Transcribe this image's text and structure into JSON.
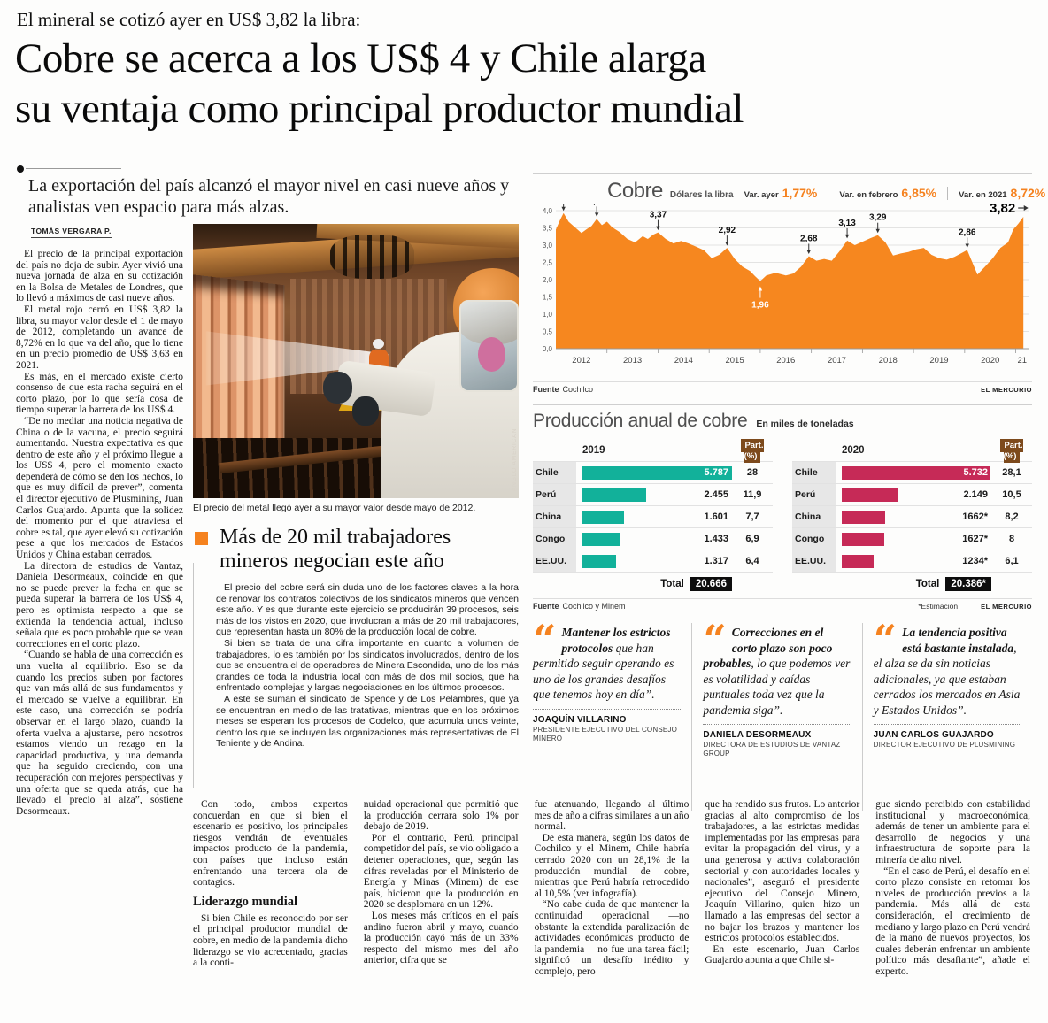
{
  "page": {
    "kicker": "El mineral se cotizó ayer en US$ 3,82 la libra:",
    "headline_line1": "Cobre se acerca a los US$ 4 y Chile alarga",
    "headline_line2": "su ventaja como principal productor mundial",
    "subhead": "La exportación del país alcanzó el mayor nivel en casi nueve años y analistas ven espacio para más alzas.",
    "byline": "TOMÁS VERGARA P."
  },
  "article": {
    "col1": [
      "El precio de la principal exportación del país no deja de subir. Ayer vivió una nueva jornada de alza en su cotización en la Bolsa de Metales de Londres, que lo llevó a máximos de casi nueve años.",
      "El metal rojo cerró en US$ 3,82 la libra, su mayor valor desde el 1 de mayo de 2012, completando un avance de 8,72% en lo que va del año, que lo tiene en un precio promedio de US$ 3,63 en 2021.",
      "Es más, en el mercado existe cierto consenso de que esta racha seguirá en el corto plazo, por lo que sería cosa de tiempo superar la barrera de los US$ 4.",
      "“De no mediar una noticia negativa de China o de la vacuna, el precio seguirá aumentando. Nuestra expectativa es que dentro de este año y el próximo llegue a los US$ 4, pero el momento exacto dependerá de cómo se den los hechos, lo que es muy difícil de prever”, comenta el director ejecutivo de Plusmining, Juan Carlos Guajardo. Apunta que la solidez del momento por el que atraviesa el cobre es tal, que ayer elevó su cotización pese a que los mercados de Estados Unidos y China estaban cerrados.",
      "La directora de estudios de Vantaz, Daniela Desormeaux, coincide en que no se puede prever la fecha en que se pueda superar la barrera de los US$ 4, pero es optimista respecto a que se extienda la tendencia actual, incluso señala que es poco probable que se vean correcciones en el corto plazo.",
      "“Cuando se habla de una corrección es una vuelta al equilibrio. Eso se da cuando los precios suben por factores que van más allá de sus fundamentos y el mercado se vuelve a equilibrar. En este caso, una corrección se podría observar en el largo plazo, cuando la oferta vuelva a ajustarse, pero nosotros estamos viendo un rezago en la capacidad productiva, y una demanda que ha seguido creciendo, con una recuperación con mejores perspectivas y una oferta que se queda atrás, que ha llevado el precio al alza”, sostiene Desormeaux."
    ],
    "col2_before": [
      "Con todo, ambos expertos concuerdan en que si bien el escenario es positivo, los principales riesgos vendrán de eventuales impactos producto de la pandemia, con países que incluso están enfrentando una tercera ola de contagios."
    ],
    "col2_subhead": "Liderazgo mundial",
    "col2_after": [
      "Si bien Chile es reconocido por ser el principal productor mundial de cobre, en medio de la pandemia dicho liderazgo se vio acrecentado, gracias a la conti-"
    ],
    "col3": [
      "nuidad operacional que permitió que la producción cerrara solo 1% por debajo de 2019.",
      "Por el contrario, Perú, principal competidor del país, se vio obligado a detener operaciones, que, según las cifras reveladas por el Ministerio de Energía y Minas (Minem) de ese país, hicieron que la producción en 2020 se desplomara en un 12%.",
      "Los meses más críticos en el país andino fueron abril y mayo, cuando la producción cayó más de un 33% respecto del mismo mes del año anterior, cifra que se"
    ],
    "col4": [
      "fue atenuando, llegando al último mes de año a cifras similares a un año normal.",
      "De esta manera, según los datos de Cochilco y el Minem, Chile habría cerrado 2020 con un 28,1% de la producción mundial de cobre, mientras que Perú habría retrocedido al 10,5% (ver infografía).",
      "“No cabe duda de que mantener la continuidad operacional —no obstante la extendida paralización de actividades económicas producto de la pandemia— no fue una tarea fácil; significó un desafío inédito y complejo, pero"
    ],
    "col5": [
      "que ha rendido sus frutos. Lo anterior gracias al alto compromiso de los trabajadores, a las estrictas medidas implementadas por las empresas para evitar la propagación del virus, y a una generosa y activa colaboración sectorial y con autoridades locales y nacionales”, aseguró el presidente ejecutivo del Consejo Minero, Joaquín Villarino, quien hizo un llamado a las empresas del sector a no bajar los brazos y mantener los estrictos protocolos establecidos.",
      "En este escenario, Juan Carlos Guajardo apunta a que Chile si-"
    ],
    "col6": [
      "gue siendo percibido con estabilidad institucional y macroeconómica, además de tener un ambiente para el desarrollo de negocios y una infraestructura de soporte para la minería de alto nivel.",
      "“En el caso de Perú, el desafío en el corto plazo consiste en retomar los niveles de producción previos a la pandemia. Más allá de esta consideración, el crecimiento de mediano y largo plazo en Perú vendrá de la mano de nuevos proyectos, los cuales deberán enfrentar un ambiente político más desafiante”, añade el experto."
    ]
  },
  "photo": {
    "caption": "El precio del metal llegó ayer a su mayor valor desde mayo de 2012.",
    "credit": "ANGLO AMERICAN"
  },
  "secondary": {
    "headline": "Más de 20 mil trabajadores mineros negocian este año",
    "paragraphs": [
      "El precio del cobre será sin duda uno de los factores claves a la hora de renovar los contratos colectivos de los sindicatos mineros que vencen este año. Y es que durante este ejercicio se producirán 39 procesos, seis más de los vistos en 2020, que involucran a más de 20 mil trabajadores, que representan hasta un 80% de la producción local de cobre.",
      "Si bien se trata de una cifra importante en cuanto a volumen de trabajadores, lo es también por los sindicatos involucrados, dentro de los que se encuentra el de operadores de Minera Escondida, uno de los más grandes de toda la industria local con más de dos mil socios, que ha enfrentado complejas y largas negociaciones en los últimos procesos.",
      "A este se suman el sindicato de Spence y de Los Pelambres, que ya se encuentran en medio de las tratativas, mientras que en los próximos meses se esperan los procesos de Codelco, que acumula unos veinte, dentro los que se incluyen las organizaciones más representativas de El Teniente y de Andina."
    ]
  },
  "quotes": [
    {
      "lead": "Mantener los estrictos protocolos",
      "rest": " que han permitido seguir operando es uno de los grandes desafíos que tenemos hoy en día”.",
      "name": "JOAQUÍN VILLARINO",
      "title": "PRESIDENTE EJECUTIVO DEL CONSEJO MINERO"
    },
    {
      "lead": "Correcciones en el corto plazo son poco probables",
      "rest": ", lo que podemos ver es volatilidad y caídas puntuales toda vez que la pandemia siga”.",
      "name": "DANIELA DESORMEAUX",
      "title": "DIRECTORA DE ESTUDIOS DE VANTAZ GROUP"
    },
    {
      "lead": "La tendencia positiva está bastante instalada",
      "rest": ", el alza se da sin noticias adicionales, ya que estaban cerrados los mercados en Asia y Estados Unidos”.",
      "name": "JUAN CARLOS GUAJARDO",
      "title": "DIRECTOR EJECUTIVO DE PLUSMINING"
    }
  ],
  "chart_data": [
    {
      "type": "area",
      "title": "Cobre",
      "unit": "Dólares la libra",
      "stats": [
        {
          "label": "Var. ayer",
          "value": "1,77%"
        },
        {
          "label": "Var. en febrero",
          "value": "6,85%"
        },
        {
          "label": "Var. en 2021",
          "value": "8,72%"
        }
      ],
      "fill": "#f6871f",
      "accent": "#f5821f",
      "ylim": [
        0,
        4
      ],
      "yticks": [
        [
          0,
          "0,0"
        ],
        [
          0.5,
          "0,5"
        ],
        [
          1,
          "1,0"
        ],
        [
          1.5,
          "1,5"
        ],
        [
          2,
          "2,0"
        ],
        [
          2.5,
          "2,5"
        ],
        [
          3,
          "3,0"
        ],
        [
          3.5,
          "3,5"
        ],
        [
          4,
          "4,0"
        ]
      ],
      "xlim": [
        2012,
        2021.25
      ],
      "xticks": [
        2012,
        2013,
        2014,
        2015,
        2016,
        2017,
        2018,
        2019,
        2020
      ],
      "xtick_last": "21",
      "series_name": "Precio del cobre, dólares la libra",
      "points": [
        [
          2012.0,
          3.45
        ],
        [
          2012.08,
          3.72
        ],
        [
          2012.15,
          3.93
        ],
        [
          2012.25,
          3.68
        ],
        [
          2012.35,
          3.55
        ],
        [
          2012.5,
          3.35
        ],
        [
          2012.6,
          3.46
        ],
        [
          2012.7,
          3.56
        ],
        [
          2012.8,
          3.76
        ],
        [
          2012.9,
          3.58
        ],
        [
          2013.0,
          3.68
        ],
        [
          2013.1,
          3.52
        ],
        [
          2013.25,
          3.38
        ],
        [
          2013.4,
          3.18
        ],
        [
          2013.55,
          3.08
        ],
        [
          2013.7,
          3.26
        ],
        [
          2013.8,
          3.18
        ],
        [
          2013.9,
          3.3
        ],
        [
          2014.0,
          3.37
        ],
        [
          2014.15,
          3.18
        ],
        [
          2014.3,
          3.05
        ],
        [
          2014.45,
          3.12
        ],
        [
          2014.6,
          3.05
        ],
        [
          2014.75,
          2.95
        ],
        [
          2014.9,
          2.85
        ],
        [
          2015.05,
          2.62
        ],
        [
          2015.2,
          2.72
        ],
        [
          2015.35,
          2.92
        ],
        [
          2015.5,
          2.6
        ],
        [
          2015.65,
          2.38
        ],
        [
          2015.8,
          2.25
        ],
        [
          2015.9,
          2.1
        ],
        [
          2016.0,
          1.96
        ],
        [
          2016.12,
          2.12
        ],
        [
          2016.3,
          2.2
        ],
        [
          2016.5,
          2.12
        ],
        [
          2016.65,
          2.18
        ],
        [
          2016.8,
          2.38
        ],
        [
          2016.95,
          2.68
        ],
        [
          2017.1,
          2.55
        ],
        [
          2017.25,
          2.6
        ],
        [
          2017.4,
          2.55
        ],
        [
          2017.55,
          2.82
        ],
        [
          2017.7,
          3.13
        ],
        [
          2017.85,
          3.0
        ],
        [
          2018.0,
          3.1
        ],
        [
          2018.15,
          3.2
        ],
        [
          2018.3,
          3.29
        ],
        [
          2018.45,
          3.08
        ],
        [
          2018.6,
          2.7
        ],
        [
          2018.75,
          2.76
        ],
        [
          2018.9,
          2.8
        ],
        [
          2019.05,
          2.88
        ],
        [
          2019.2,
          2.92
        ],
        [
          2019.35,
          2.72
        ],
        [
          2019.5,
          2.62
        ],
        [
          2019.65,
          2.58
        ],
        [
          2019.8,
          2.66
        ],
        [
          2019.95,
          2.78
        ],
        [
          2020.05,
          2.86
        ],
        [
          2020.15,
          2.5
        ],
        [
          2020.25,
          2.15
        ],
        [
          2020.4,
          2.38
        ],
        [
          2020.55,
          2.62
        ],
        [
          2020.7,
          2.92
        ],
        [
          2020.85,
          3.08
        ],
        [
          2020.95,
          3.45
        ],
        [
          2021.05,
          3.62
        ],
        [
          2021.15,
          3.82
        ]
      ],
      "annotations": [
        {
          "label": "3,93",
          "x": 2012.15,
          "y": 3.93,
          "dir": "down"
        },
        {
          "label": "3,76",
          "x": 2012.8,
          "y": 3.76,
          "dir": "down"
        },
        {
          "label": "3,37",
          "x": 2014.0,
          "y": 3.37,
          "dir": "down"
        },
        {
          "label": "2,92",
          "x": 2015.35,
          "y": 2.92,
          "dir": "down"
        },
        {
          "label": "1,96",
          "x": 2016.0,
          "y": 1.96,
          "dir": "up"
        },
        {
          "label": "2,68",
          "x": 2016.95,
          "y": 2.68,
          "dir": "down"
        },
        {
          "label": "3,13",
          "x": 2017.7,
          "y": 3.13,
          "dir": "down"
        },
        {
          "label": "3,29",
          "x": 2018.3,
          "y": 3.29,
          "dir": "down"
        },
        {
          "label": "2,86",
          "x": 2020.05,
          "y": 2.86,
          "dir": "down"
        },
        {
          "label": "3,82",
          "x": 2021.15,
          "y": 3.82,
          "dir": "right"
        }
      ],
      "source_label": "Fuente",
      "source": "Cochilco",
      "credit": "EL MERCURIO"
    },
    {
      "type": "bar",
      "title": "Producción anual de cobre",
      "subtitle": "En miles de toneladas",
      "categories": [
        "Chile",
        "Perú",
        "China",
        "Congo",
        "EE.UU."
      ],
      "part_header": "Part. (%)",
      "total_label": "Total",
      "groups": [
        {
          "year": "2019",
          "color": "#12b19a",
          "values": [
            5787,
            2455,
            1601,
            1433,
            1317
          ],
          "value_labels": [
            "5.787",
            "2.455",
            "1.601",
            "1.433",
            "1.317"
          ],
          "part": [
            "28",
            "11,9",
            "7,7",
            "6,9",
            "6,4"
          ],
          "total": "20.666"
        },
        {
          "year": "2020",
          "color": "#c62a57",
          "values": [
            5732,
            2149,
            1662,
            1627,
            1234
          ],
          "value_labels": [
            "5.732",
            "2.149",
            "1662*",
            "1627*",
            "1234*"
          ],
          "part": [
            "28,1",
            "10,5",
            "8,2",
            "8",
            "6,1"
          ],
          "total": "20.386*"
        }
      ],
      "footnote": "*Estimación",
      "source_label": "Fuente",
      "source": "Cochilco y Minem",
      "credit": "EL MERCURIO"
    }
  ],
  "colors": {
    "accent_orange": "#f5821f",
    "teal_2019": "#12b19a",
    "crimson_2020": "#c62a57",
    "part_chip_brown": "#7d4a1c",
    "total_chip_black": "#0d0d0d"
  }
}
